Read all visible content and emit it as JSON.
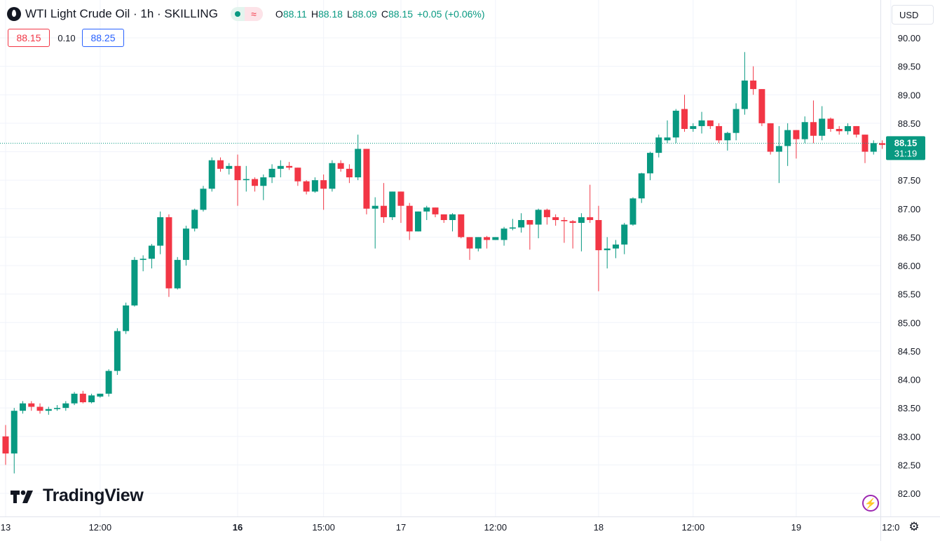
{
  "header": {
    "title": "WTI Light Crude Oil · 1h · SKILLING",
    "wave_glyph": "≈",
    "open_label": "O",
    "open": "88.11",
    "high_label": "H",
    "high": "88.18",
    "low_label": "L",
    "low": "88.09",
    "close_label": "C",
    "close": "88.15",
    "change": "+0.05 (+0.06%)"
  },
  "quote": {
    "bid": "88.15",
    "spread": "0.10",
    "ask": "88.25"
  },
  "currency": {
    "label": "USD",
    "arrow": "⌄"
  },
  "logo": {
    "text": "TradingView"
  },
  "colors": {
    "up": "#089981",
    "down": "#f23645",
    "grid": "#f0f3fa",
    "text": "#131722",
    "ask": "#2962ff"
  },
  "icons": {
    "symbol": "oil-drop-icon",
    "bolt": "lightning-icon",
    "gear": "settings-icon"
  },
  "chart_data": {
    "type": "candlestick",
    "interval": "1h",
    "y_axis": {
      "ticks": [
        "90.00",
        "89.50",
        "89.00",
        "88.50",
        "88.00",
        "87.50",
        "87.00",
        "86.50",
        "86.00",
        "85.50",
        "85.00",
        "84.50",
        "84.00",
        "83.50",
        "83.00",
        "82.50",
        "82.00"
      ],
      "ylim": [
        81.8,
        90.4
      ]
    },
    "x_axis": {
      "ticks": [
        {
          "label": "13",
          "bar": 0,
          "bold": false
        },
        {
          "label": "12:00",
          "bar": 11,
          "bold": false
        },
        {
          "label": "16",
          "bar": 27,
          "bold": true
        },
        {
          "label": "15:00",
          "bar": 37,
          "bold": false
        },
        {
          "label": "17",
          "bar": 46,
          "bold": false
        },
        {
          "label": "12:00",
          "bar": 57,
          "bold": false
        },
        {
          "label": "18",
          "bar": 69,
          "bold": false
        },
        {
          "label": "12:00",
          "bar": 80,
          "bold": false
        },
        {
          "label": "19",
          "bar": 92,
          "bold": false
        },
        {
          "label": "12:0",
          "bar": 103,
          "bold": false
        }
      ]
    },
    "last_price": {
      "value": 88.15,
      "label": "88.15",
      "countdown": "31:19"
    },
    "candles": [
      [
        83.0,
        83.2,
        82.5,
        82.7
      ],
      [
        82.7,
        83.5,
        82.35,
        83.45
      ],
      [
        83.45,
        83.62,
        83.4,
        83.58
      ],
      [
        83.58,
        83.62,
        83.45,
        83.52
      ],
      [
        83.52,
        83.58,
        83.4,
        83.45
      ],
      [
        83.45,
        83.52,
        83.38,
        83.48
      ],
      [
        83.48,
        83.55,
        83.45,
        83.5
      ],
      [
        83.5,
        83.62,
        83.45,
        83.58
      ],
      [
        83.58,
        83.78,
        83.55,
        83.75
      ],
      [
        83.75,
        83.8,
        83.58,
        83.6
      ],
      [
        83.6,
        83.75,
        83.58,
        83.72
      ],
      [
        83.7,
        83.75,
        83.68,
        83.75
      ],
      [
        83.75,
        84.18,
        83.7,
        84.15
      ],
      [
        84.15,
        84.9,
        84.08,
        84.85
      ],
      [
        84.85,
        85.35,
        84.8,
        85.3
      ],
      [
        85.3,
        86.15,
        85.28,
        86.1
      ],
      [
        86.1,
        86.18,
        85.9,
        86.12
      ],
      [
        86.12,
        86.38,
        85.95,
        86.35
      ],
      [
        86.35,
        86.95,
        86.2,
        86.85
      ],
      [
        86.85,
        86.9,
        85.45,
        85.6
      ],
      [
        85.6,
        86.15,
        85.58,
        86.1
      ],
      [
        86.1,
        86.7,
        86.0,
        86.65
      ],
      [
        86.65,
        87.0,
        86.6,
        86.98
      ],
      [
        86.98,
        87.4,
        86.95,
        87.35
      ],
      [
        87.35,
        87.9,
        87.3,
        87.85
      ],
      [
        87.85,
        87.9,
        87.65,
        87.7
      ],
      [
        87.7,
        87.8,
        87.6,
        87.75
      ],
      [
        87.75,
        87.95,
        87.05,
        87.5
      ],
      [
        87.5,
        87.75,
        87.3,
        87.52
      ],
      [
        87.52,
        87.55,
        87.3,
        87.4
      ],
      [
        87.4,
        87.6,
        87.15,
        87.55
      ],
      [
        87.55,
        87.78,
        87.45,
        87.7
      ],
      [
        87.7,
        87.85,
        87.55,
        87.75
      ],
      [
        87.75,
        87.82,
        87.68,
        87.72
      ],
      [
        87.72,
        87.72,
        87.4,
        87.48
      ],
      [
        87.48,
        87.5,
        87.25,
        87.3
      ],
      [
        87.3,
        87.55,
        87.28,
        87.5
      ],
      [
        87.5,
        87.6,
        86.98,
        87.35
      ],
      [
        87.35,
        87.85,
        87.3,
        87.8
      ],
      [
        87.8,
        87.85,
        87.65,
        87.7
      ],
      [
        87.7,
        87.78,
        87.45,
        87.55
      ],
      [
        87.55,
        88.3,
        87.5,
        88.05
      ],
      [
        88.05,
        88.05,
        86.9,
        87.0
      ],
      [
        87.0,
        87.2,
        86.3,
        87.05
      ],
      [
        87.05,
        87.45,
        86.75,
        86.85
      ],
      [
        86.85,
        87.3,
        86.8,
        87.3
      ],
      [
        87.3,
        87.3,
        86.75,
        87.05
      ],
      [
        87.05,
        87.1,
        86.45,
        86.6
      ],
      [
        86.6,
        86.95,
        86.6,
        86.95
      ],
      [
        86.95,
        87.05,
        86.8,
        87.02
      ],
      [
        87.02,
        87.02,
        86.85,
        86.9
      ],
      [
        86.9,
        86.9,
        86.75,
        86.8
      ],
      [
        86.8,
        86.92,
        86.6,
        86.9
      ],
      [
        86.9,
        86.9,
        86.48,
        86.5
      ],
      [
        86.5,
        86.5,
        86.1,
        86.3
      ],
      [
        86.3,
        86.5,
        86.25,
        86.5
      ],
      [
        86.5,
        86.52,
        86.3,
        86.45
      ],
      [
        86.45,
        86.5,
        86.45,
        86.5
      ],
      [
        86.45,
        86.68,
        86.35,
        86.65
      ],
      [
        86.65,
        86.82,
        86.62,
        86.67
      ],
      [
        86.67,
        86.92,
        86.58,
        86.8
      ],
      [
        86.8,
        86.8,
        86.28,
        86.72
      ],
      [
        86.72,
        87.0,
        86.48,
        86.98
      ],
      [
        86.98,
        87.0,
        86.72,
        86.85
      ],
      [
        86.85,
        86.9,
        86.7,
        86.8
      ],
      [
        86.8,
        86.85,
        86.4,
        86.78
      ],
      [
        86.78,
        86.8,
        86.3,
        86.75
      ],
      [
        86.75,
        86.92,
        86.25,
        86.85
      ],
      [
        86.85,
        87.42,
        86.75,
        86.8
      ],
      [
        86.8,
        87.05,
        85.55,
        86.27
      ],
      [
        86.27,
        86.5,
        85.95,
        86.3
      ],
      [
        86.3,
        86.45,
        86.13,
        86.37
      ],
      [
        86.37,
        86.75,
        86.2,
        86.72
      ],
      [
        86.72,
        87.2,
        86.7,
        87.18
      ],
      [
        87.18,
        87.63,
        87.1,
        87.62
      ],
      [
        87.62,
        88.0,
        87.5,
        87.98
      ],
      [
        87.98,
        88.3,
        87.9,
        88.25
      ],
      [
        88.2,
        88.55,
        88.15,
        88.25
      ],
      [
        88.25,
        88.75,
        88.15,
        88.72
      ],
      [
        88.75,
        89.0,
        88.35,
        88.4
      ],
      [
        88.4,
        88.5,
        88.35,
        88.45
      ],
      [
        88.45,
        88.7,
        88.32,
        88.55
      ],
      [
        88.55,
        88.55,
        88.4,
        88.45
      ],
      [
        88.45,
        88.5,
        88.15,
        88.2
      ],
      [
        88.2,
        88.35,
        88.02,
        88.33
      ],
      [
        88.33,
        88.85,
        88.2,
        88.75
      ],
      [
        88.75,
        89.75,
        88.65,
        89.25
      ],
      [
        89.25,
        89.5,
        89.0,
        89.1
      ],
      [
        89.1,
        89.1,
        88.45,
        88.5
      ],
      [
        88.5,
        88.5,
        87.95,
        88.0
      ],
      [
        88.0,
        88.45,
        87.45,
        88.1
      ],
      [
        88.1,
        88.5,
        87.75,
        88.38
      ],
      [
        88.38,
        88.38,
        87.88,
        88.22
      ],
      [
        88.22,
        88.62,
        88.15,
        88.52
      ],
      [
        88.52,
        88.9,
        88.15,
        88.28
      ],
      [
        88.28,
        88.8,
        88.2,
        88.58
      ],
      [
        88.58,
        88.6,
        88.35,
        88.4
      ],
      [
        88.4,
        88.45,
        88.3,
        88.36
      ],
      [
        88.36,
        88.5,
        88.3,
        88.45
      ],
      [
        88.45,
        88.45,
        88.25,
        88.3
      ],
      [
        88.3,
        88.3,
        87.8,
        88.0
      ],
      [
        88.0,
        88.2,
        87.95,
        88.15
      ],
      [
        88.15,
        88.2,
        88.05,
        88.12
      ],
      [
        88.12,
        88.2,
        88.08,
        88.15
      ],
      [
        88.11,
        88.18,
        88.09,
        88.15
      ]
    ]
  }
}
